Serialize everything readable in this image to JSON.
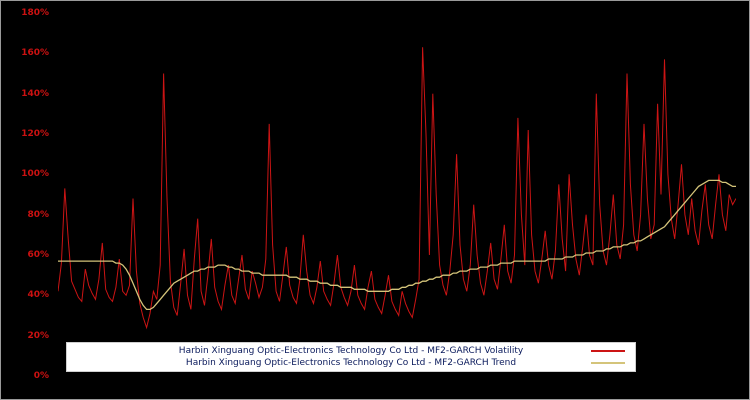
{
  "chart_data": {
    "type": "line",
    "title": "",
    "xlabel": "",
    "ylabel": "",
    "ylim": [
      0,
      180
    ],
    "yticks": [
      "0%",
      "20%",
      "40%",
      "60%",
      "80%",
      "100%",
      "120%",
      "140%",
      "160%",
      "180%"
    ],
    "grid": false,
    "legend_position": "bottom-center",
    "background_color": "#000000",
    "axis_label_color": "#cc1111",
    "legend_text_color": "#0a1a5c",
    "series": [
      {
        "name": "Harbin Xinguang Optic-Electronics Technology Co Ltd - MF2-GARCH Volatility",
        "color": "#cc1414",
        "values": [
          42,
          56,
          93,
          68,
          47,
          43,
          39,
          37,
          53,
          45,
          41,
          38,
          48,
          66,
          43,
          39,
          37,
          44,
          58,
          42,
          40,
          45,
          88,
          52,
          36,
          29,
          24,
          31,
          42,
          38,
          55,
          150,
          88,
          47,
          34,
          30,
          46,
          63,
          40,
          33,
          58,
          78,
          42,
          35,
          50,
          68,
          44,
          37,
          33,
          45,
          55,
          40,
          36,
          48,
          60,
          43,
          38,
          52,
          46,
          39,
          44,
          58,
          125,
          65,
          42,
          37,
          50,
          64,
          45,
          39,
          36,
          48,
          70,
          52,
          40,
          36,
          44,
          57,
          42,
          38,
          35,
          46,
          60,
          44,
          39,
          35,
          42,
          55,
          40,
          36,
          33,
          44,
          52,
          38,
          34,
          31,
          40,
          50,
          37,
          33,
          30,
          42,
          36,
          32,
          29,
          38,
          48,
          163,
          120,
          60,
          140,
          90,
          55,
          45,
          40,
          52,
          70,
          110,
          65,
          48,
          42,
          55,
          85,
          60,
          46,
          40,
          52,
          66,
          48,
          43,
          58,
          75,
          52,
          46,
          60,
          128,
          80,
          55,
          122,
          70,
          52,
          46,
          58,
          72,
          55,
          48,
          62,
          95,
          68,
          52,
          100,
          75,
          58,
          50,
          64,
          80,
          60,
          55,
          140,
          85,
          62,
          55,
          70,
          90,
          65,
          58,
          75,
          150,
          95,
          70,
          62,
          80,
          125,
          88,
          68,
          75,
          135,
          90,
          157,
          100,
          78,
          68,
          85,
          105,
          80,
          70,
          88,
          72,
          65,
          82,
          95,
          75,
          68,
          85,
          100,
          80,
          72,
          90,
          85,
          88
        ]
      },
      {
        "name": "Harbin Xinguang Optic-Electronics Technology Co Ltd - MF2-GARCH Trend",
        "color": "#d4c47a",
        "values": [
          57,
          57,
          57,
          57,
          57,
          57,
          57,
          57,
          57,
          57,
          57,
          57,
          57,
          57,
          57,
          57,
          57,
          56,
          56,
          55,
          53,
          50,
          46,
          42,
          38,
          35,
          33,
          33,
          34,
          36,
          38,
          40,
          42,
          44,
          46,
          47,
          48,
          49,
          50,
          51,
          52,
          52,
          53,
          53,
          54,
          54,
          54,
          55,
          55,
          55,
          54,
          54,
          53,
          53,
          52,
          52,
          52,
          51,
          51,
          51,
          50,
          50,
          50,
          50,
          50,
          50,
          50,
          50,
          49,
          49,
          49,
          48,
          48,
          48,
          47,
          47,
          47,
          46,
          46,
          46,
          45,
          45,
          45,
          44,
          44,
          44,
          44,
          43,
          43,
          43,
          43,
          42,
          42,
          42,
          42,
          42,
          42,
          42,
          43,
          43,
          43,
          44,
          44,
          45,
          45,
          46,
          46,
          47,
          47,
          48,
          48,
          49,
          49,
          50,
          50,
          50,
          51,
          51,
          52,
          52,
          52,
          53,
          53,
          53,
          54,
          54,
          54,
          55,
          55,
          55,
          56,
          56,
          56,
          56,
          57,
          57,
          57,
          57,
          57,
          57,
          57,
          57,
          57,
          57,
          58,
          58,
          58,
          58,
          58,
          59,
          59,
          59,
          60,
          60,
          60,
          61,
          61,
          61,
          62,
          62,
          62,
          63,
          63,
          64,
          64,
          64,
          65,
          65,
          66,
          66,
          67,
          67,
          68,
          69,
          70,
          71,
          72,
          73,
          74,
          76,
          78,
          80,
          82,
          84,
          86,
          88,
          90,
          92,
          94,
          95,
          96,
          97,
          97,
          97,
          97,
          96,
          96,
          95,
          94,
          94
        ]
      }
    ]
  },
  "legend": {
    "volatility_label": "Harbin Xinguang Optic-Electronics Technology Co Ltd - MF2-GARCH Volatility",
    "trend_label": "Harbin Xinguang Optic-Electronics Technology Co Ltd - MF2-GARCH Trend"
  }
}
